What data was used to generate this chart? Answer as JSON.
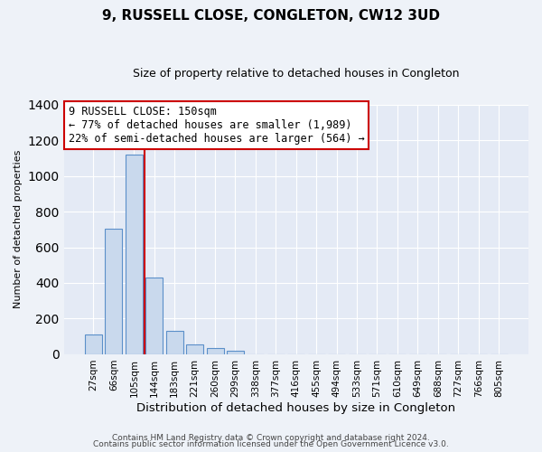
{
  "title": "9, RUSSELL CLOSE, CONGLETON, CW12 3UD",
  "subtitle": "Size of property relative to detached houses in Congleton",
  "xlabel": "Distribution of detached houses by size in Congleton",
  "ylabel": "Number of detached properties",
  "bar_labels": [
    "27sqm",
    "66sqm",
    "105sqm",
    "144sqm",
    "183sqm",
    "221sqm",
    "260sqm",
    "299sqm",
    "338sqm",
    "377sqm",
    "416sqm",
    "455sqm",
    "494sqm",
    "533sqm",
    "571sqm",
    "610sqm",
    "649sqm",
    "688sqm",
    "727sqm",
    "766sqm",
    "805sqm"
  ],
  "bar_values": [
    110,
    705,
    1120,
    430,
    130,
    58,
    33,
    18,
    0,
    0,
    0,
    0,
    0,
    0,
    0,
    0,
    0,
    0,
    0,
    0,
    0
  ],
  "bar_color": "#c9d9ed",
  "bar_edge_color": "#5b8fc9",
  "ylim": [
    0,
    1400
  ],
  "yticks": [
    0,
    200,
    400,
    600,
    800,
    1000,
    1200,
    1400
  ],
  "vline_color": "#cc0000",
  "annotation_line1": "9 RUSSELL CLOSE: 150sqm",
  "annotation_line2": "← 77% of detached houses are smaller (1,989)",
  "annotation_line3": "22% of semi-detached houses are larger (564) →",
  "annotation_box_color": "#ffffff",
  "annotation_box_edge": "#cc0000",
  "footer_line1": "Contains HM Land Registry data © Crown copyright and database right 2024.",
  "footer_line2": "Contains public sector information licensed under the Open Government Licence v3.0.",
  "background_color": "#eef2f8",
  "plot_bg_color": "#e4eaf5"
}
